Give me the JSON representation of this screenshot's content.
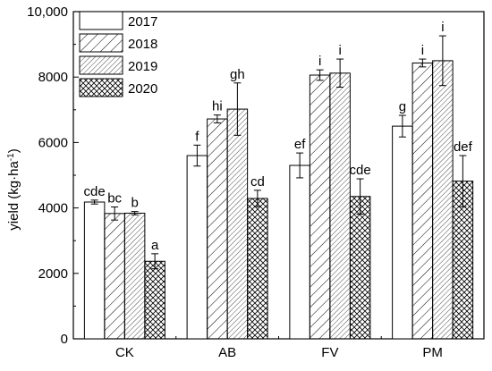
{
  "chart_data": {
    "type": "bar",
    "ylabel": "yield (kg·ha",
    "ylabel_sup": "-1",
    "ylabel_close": ")",
    "ylim": [
      0,
      10000
    ],
    "yticks": [
      "0",
      "2000",
      "4000",
      "6000",
      "8000",
      "10,000"
    ],
    "ytick_values": [
      0,
      2000,
      4000,
      6000,
      8000,
      10000
    ],
    "categories": [
      "CK",
      "AB",
      "FV",
      "PM"
    ],
    "series": [
      {
        "name": "2017",
        "pattern": "solid",
        "values": [
          4180,
          5600,
          5300,
          6500
        ],
        "errors": [
          60,
          320,
          380,
          330
        ],
        "labels": [
          "cde",
          "f",
          "ef",
          "g"
        ]
      },
      {
        "name": "2018",
        "pattern": "diag-coarse",
        "values": [
          3830,
          6720,
          8060,
          8430
        ],
        "errors": [
          200,
          120,
          160,
          120
        ],
        "labels": [
          "bc",
          "hi",
          "i",
          "i"
        ]
      },
      {
        "name": "2019",
        "pattern": "diag-fine",
        "values": [
          3840,
          7020,
          8120,
          8500
        ],
        "errors": [
          50,
          800,
          430,
          760
        ],
        "labels": [
          "b",
          "gh",
          "i",
          "i"
        ]
      },
      {
        "name": "2020",
        "pattern": "cross",
        "values": [
          2370,
          4290,
          4350,
          4820
        ],
        "errors": [
          230,
          250,
          540,
          780
        ],
        "labels": [
          "a",
          "cd",
          "cde",
          "def"
        ]
      }
    ],
    "legend_placement": "top-left",
    "grid": false
  }
}
